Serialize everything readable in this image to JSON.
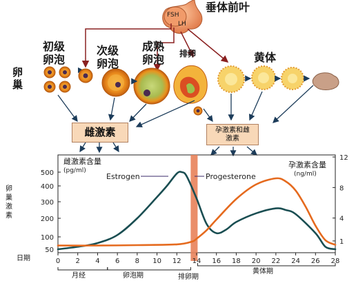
{
  "pituitary": {
    "title": "垂体前叶",
    "fsh": "FSH",
    "lh": "LH"
  },
  "ovary_label": "卵巢",
  "stages": {
    "primary_follicle": "初级卵泡",
    "secondary_follicle": "次级卵泡",
    "mature_follicle": "成熟卵泡",
    "ovulation": "排卵",
    "corpus_luteum": "黄体"
  },
  "hormone_boxes": {
    "estrogen_box": "雌激素",
    "prog_estrogen_box": "孕激素和雌激素"
  },
  "chart_data": {
    "type": "line",
    "left_axis": {
      "title": "雌激素含量",
      "unit": "(pg/ml)",
      "side_label": "卵巢激素",
      "ticks": [
        50,
        100,
        200,
        300,
        400,
        500
      ]
    },
    "right_axis": {
      "title": "孕激素含量",
      "unit": "(ng/ml)",
      "ticks": [
        1,
        4,
        8,
        12
      ]
    },
    "x_axis": {
      "label": "日期",
      "ticks": [
        0,
        2,
        4,
        6,
        8,
        10,
        12,
        14,
        16,
        18,
        20,
        22,
        24,
        26,
        28
      ],
      "range": [
        0,
        28
      ]
    },
    "phases": {
      "menstrual": "月经",
      "follicular": "卵泡期",
      "ovulatory": "排卵期",
      "luteal": "黄体期"
    },
    "ovulation_band": [
      13.4,
      14.1
    ],
    "series": [
      {
        "name": "Estrogen",
        "color": "#1a4e52",
        "axis": "left",
        "points": [
          [
            0,
            50
          ],
          [
            2,
            60
          ],
          [
            4,
            75
          ],
          [
            6,
            110
          ],
          [
            8,
            200
          ],
          [
            10,
            330
          ],
          [
            11,
            400
          ],
          [
            12,
            490
          ],
          [
            12.5,
            500
          ],
          [
            13,
            470
          ],
          [
            14,
            320
          ],
          [
            15,
            170
          ],
          [
            16,
            120
          ],
          [
            17,
            140
          ],
          [
            18,
            180
          ],
          [
            20,
            230
          ],
          [
            22,
            260
          ],
          [
            23,
            250
          ],
          [
            24,
            225
          ],
          [
            26,
            120
          ],
          [
            27,
            60
          ],
          [
            28,
            50
          ]
        ]
      },
      {
        "name": "Progesterone",
        "color": "#e56a1e",
        "axis": "right",
        "points": [
          [
            0,
            0.4
          ],
          [
            4,
            0.4
          ],
          [
            8,
            0.45
          ],
          [
            12,
            0.55
          ],
          [
            13.5,
            0.9
          ],
          [
            14,
            1.3
          ],
          [
            15,
            2.4
          ],
          [
            16,
            3.8
          ],
          [
            18,
            6.5
          ],
          [
            20,
            8.4
          ],
          [
            22,
            9.2
          ],
          [
            23,
            8.8
          ],
          [
            24,
            7.6
          ],
          [
            25,
            5.5
          ],
          [
            26,
            3
          ],
          [
            27,
            1.1
          ],
          [
            28,
            0.5
          ]
        ]
      }
    ],
    "colors": {
      "ovulation_band": "#e8825a",
      "axis": "#222222"
    }
  }
}
